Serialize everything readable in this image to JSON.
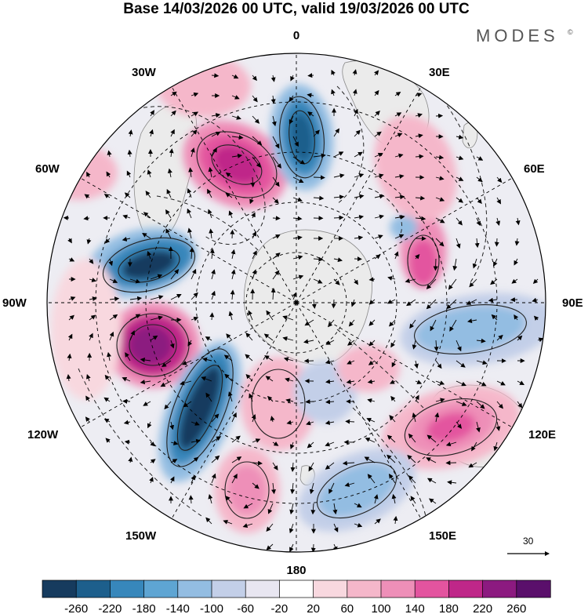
{
  "title": "Base 14/03/2026 00 UTC, valid 19/03/2026 00 UTC",
  "brand": "MODES",
  "brand_mark": "©",
  "longitude_labels": {
    "lon_0": "0",
    "lon_30e": "30E",
    "lon_60e": "60E",
    "lon_90e": "90E",
    "lon_120e": "120E",
    "lon_150e": "150E",
    "lon_180": "180",
    "lon_150w": "150W",
    "lon_120w": "120W",
    "lon_90w": "90W",
    "lon_60w": "60W",
    "lon_30w": "30W"
  },
  "reference_vector": {
    "value": "30"
  },
  "colorbar": {
    "colors": [
      "#163b5e",
      "#1d5f8c",
      "#3787bb",
      "#5ea5d3",
      "#93bde2",
      "#c3cfe8",
      "#e8e6f1",
      "#ffffff",
      "#f8d8df",
      "#f5b7ca",
      "#ee8fb8",
      "#e3549f",
      "#bf2789",
      "#8c1a80",
      "#5a0f6b"
    ],
    "labels": [
      "-260",
      "-220",
      "-180",
      "-140",
      "-100",
      "-60",
      "-20",
      "20",
      "60",
      "100",
      "140",
      "180",
      "220",
      "260"
    ]
  },
  "colors": {
    "land": "#ebebeb",
    "coast": "#8a8a8a",
    "grid": "#000000",
    "arrow": "#000000"
  }
}
